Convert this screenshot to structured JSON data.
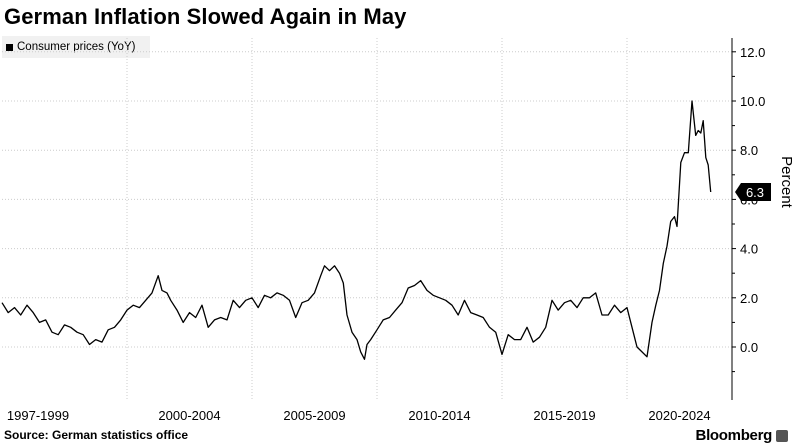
{
  "title": "German Inflation Slowed Again in May",
  "legend": {
    "label": "Consumer prices (YoY)"
  },
  "source": "Source: German statistics office",
  "brand": "Bloomberg",
  "brand_icon": "bloomberg-chart-icon",
  "colors": {
    "line": "#000000",
    "grid": "#cccccc",
    "legend_bg": "#f1f1f1",
    "tag_bg": "#000000"
  },
  "chart_data": {
    "type": "line",
    "title": "German Inflation Slowed Again in May",
    "xlabel": "",
    "ylabel": "Percent",
    "ylim": [
      -2,
      13
    ],
    "grid": true,
    "y_ticks": [
      "0.0",
      "2.0",
      "4.0",
      "6.0",
      "8.0",
      "10.0",
      "12.0"
    ],
    "x_tick_labels": [
      "1997-1999",
      "2000-2004",
      "2005-2009",
      "2010-2014",
      "2015-2019",
      "2020-2024"
    ],
    "last_value_label": "6.3",
    "series": [
      {
        "name": "Consumer prices (YoY)",
        "x": [
          1995.0,
          1995.25,
          1995.5,
          1995.75,
          1996.0,
          1996.25,
          1996.5,
          1996.75,
          1997.0,
          1997.25,
          1997.5,
          1997.75,
          1998.0,
          1998.25,
          1998.5,
          1998.75,
          1999.0,
          1999.25,
          1999.5,
          1999.75,
          2000.0,
          2000.25,
          2000.5,
          2000.75,
          2001.0,
          2001.25,
          2001.4,
          2001.6,
          2001.75,
          2002.0,
          2002.25,
          2002.5,
          2002.75,
          2003.0,
          2003.25,
          2003.5,
          2003.75,
          2004.0,
          2004.25,
          2004.5,
          2004.75,
          2005.0,
          2005.25,
          2005.5,
          2005.75,
          2006.0,
          2006.25,
          2006.5,
          2006.75,
          2007.0,
          2007.25,
          2007.5,
          2007.75,
          2007.9,
          2008.1,
          2008.3,
          2008.5,
          2008.65,
          2008.8,
          2009.0,
          2009.2,
          2009.35,
          2009.5,
          2009.6,
          2009.75,
          2010.0,
          2010.25,
          2010.5,
          2010.75,
          2011.0,
          2011.25,
          2011.5,
          2011.75,
          2012.0,
          2012.25,
          2012.5,
          2012.75,
          2013.0,
          2013.25,
          2013.5,
          2013.75,
          2014.0,
          2014.25,
          2014.5,
          2014.75,
          2015.0,
          2015.25,
          2015.5,
          2015.75,
          2016.0,
          2016.25,
          2016.5,
          2016.75,
          2017.0,
          2017.25,
          2017.5,
          2017.75,
          2018.0,
          2018.25,
          2018.5,
          2018.75,
          2019.0,
          2019.25,
          2019.5,
          2019.75,
          2020.0,
          2020.2,
          2020.4,
          2020.6,
          2020.8,
          2021.0,
          2021.15,
          2021.3,
          2021.45,
          2021.6,
          2021.75,
          2021.9,
          2022.0,
          2022.15,
          2022.3,
          2022.45,
          2022.6,
          2022.75,
          2022.85,
          2022.95,
          2023.05,
          2023.15,
          2023.25,
          2023.35
        ],
        "values": [
          1.8,
          1.4,
          1.6,
          1.3,
          1.7,
          1.4,
          1.0,
          1.1,
          0.6,
          0.5,
          0.9,
          0.8,
          0.6,
          0.5,
          0.1,
          0.3,
          0.2,
          0.7,
          0.8,
          1.1,
          1.5,
          1.7,
          1.6,
          1.9,
          2.2,
          2.9,
          2.3,
          2.2,
          1.9,
          1.5,
          1.0,
          1.4,
          1.2,
          1.7,
          0.8,
          1.1,
          1.2,
          1.1,
          1.9,
          1.6,
          1.9,
          2.0,
          1.6,
          2.1,
          2.0,
          2.2,
          2.1,
          1.9,
          1.2,
          1.8,
          1.9,
          2.2,
          2.9,
          3.3,
          3.1,
          3.3,
          3.0,
          2.6,
          1.3,
          0.6,
          0.3,
          -0.2,
          -0.5,
          0.1,
          0.3,
          0.7,
          1.1,
          1.2,
          1.5,
          1.8,
          2.4,
          2.5,
          2.7,
          2.3,
          2.1,
          2.0,
          1.9,
          1.7,
          1.3,
          1.9,
          1.4,
          1.3,
          1.2,
          0.8,
          0.6,
          -0.3,
          0.5,
          0.3,
          0.3,
          0.8,
          0.2,
          0.4,
          0.8,
          1.9,
          1.5,
          1.8,
          1.9,
          1.6,
          2.0,
          2.0,
          2.2,
          1.3,
          1.3,
          1.7,
          1.4,
          1.6,
          0.8,
          0.0,
          -0.2,
          -0.4,
          1.0,
          1.7,
          2.3,
          3.4,
          4.1,
          5.1,
          5.3,
          4.9,
          7.5,
          7.9,
          7.9,
          10.0,
          8.6,
          8.8,
          8.7,
          9.2,
          7.7,
          7.4,
          6.3
        ]
      }
    ]
  }
}
